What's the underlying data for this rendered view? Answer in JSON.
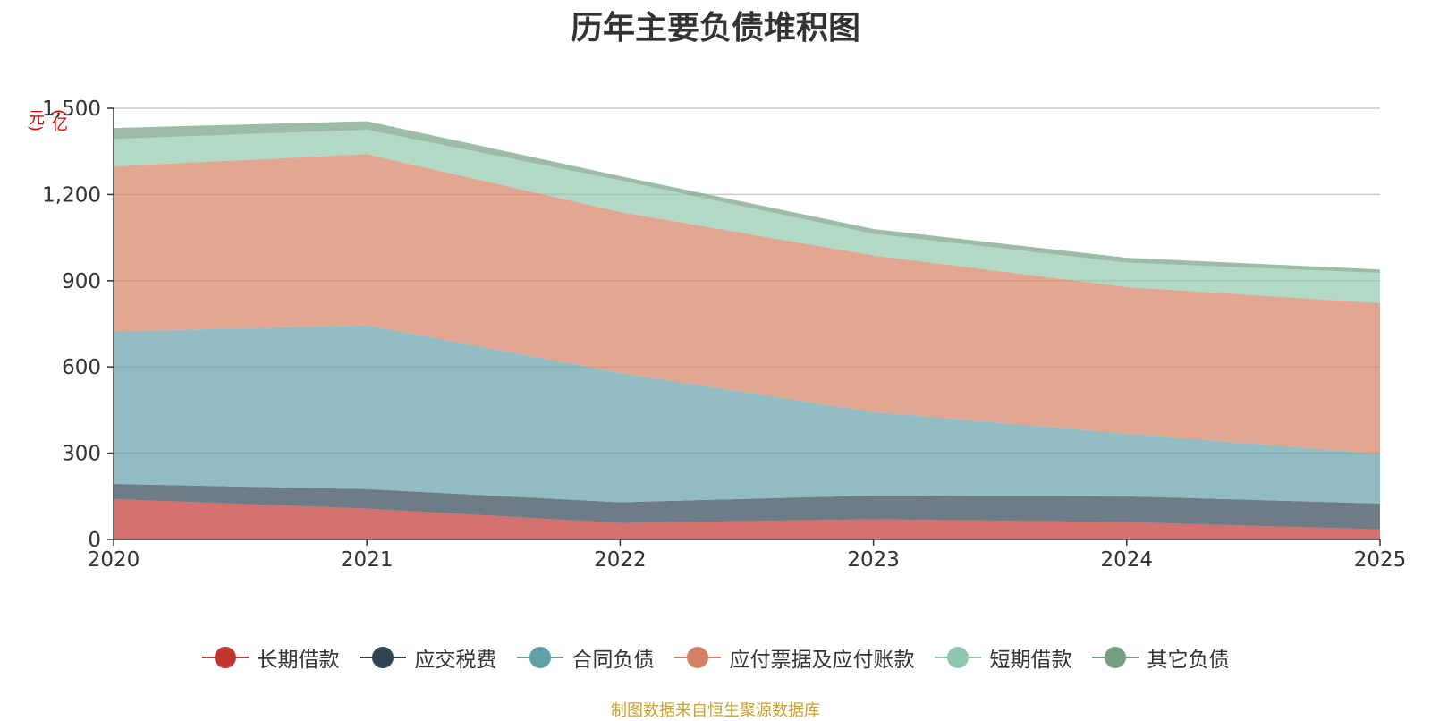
{
  "chart_data": {
    "type": "area",
    "stacked": true,
    "title": "历年主要负债堆积图",
    "unit": "(亿元)",
    "x": [
      "2020",
      "2021",
      "2022",
      "2023",
      "2024",
      "2025"
    ],
    "ylim": [
      0,
      1500
    ],
    "yticks": [
      0,
      300,
      600,
      900,
      1200,
      1500
    ],
    "ytick_labels": [
      "0",
      "300",
      "600",
      "900",
      "1,200",
      "1,500"
    ],
    "grid": true,
    "legend_position": "bottom",
    "series": [
      {
        "name": "长期借款",
        "color": "#c23531",
        "values": [
          140,
          107,
          57,
          70,
          60,
          35
        ]
      },
      {
        "name": "应交税费",
        "color": "#2f4554",
        "values": [
          53,
          68,
          72,
          83,
          90,
          90
        ]
      },
      {
        "name": "合同负债",
        "color": "#61a0a8",
        "values": [
          530,
          570,
          450,
          290,
          218,
          172
        ]
      },
      {
        "name": "应付票据及应付账款",
        "color": "#d48265",
        "values": [
          575,
          595,
          560,
          545,
          510,
          525
        ]
      },
      {
        "name": "短期借款",
        "color": "#91c7ae",
        "values": [
          95,
          85,
          110,
          75,
          85,
          105
        ]
      },
      {
        "name": "其它负债",
        "color": "#749f83",
        "values": [
          38,
          30,
          15,
          17,
          17,
          12
        ]
      }
    ],
    "source": "制图数据来自恒生聚源数据库"
  }
}
